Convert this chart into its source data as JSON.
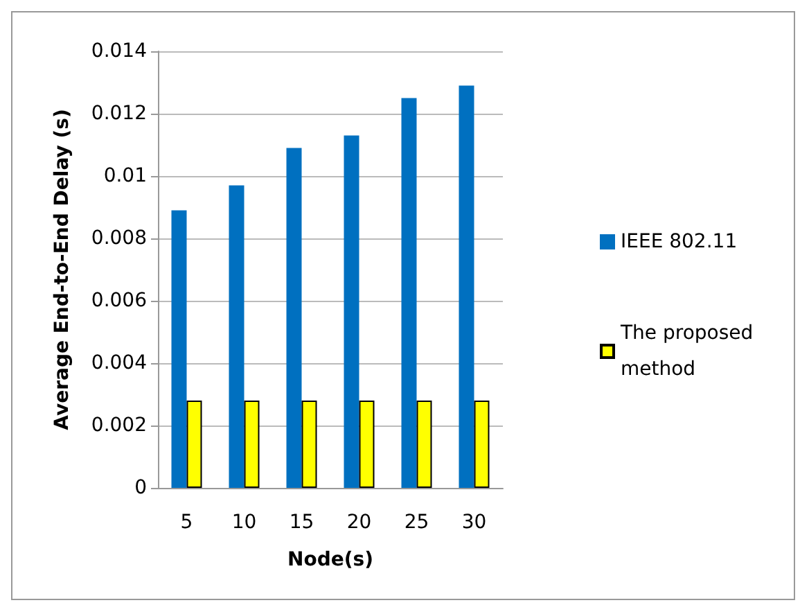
{
  "chart_data": {
    "type": "bar",
    "xlabel": "Node(s)",
    "ylabel": "Average End-to-End Delay (s)",
    "categories": [
      "5",
      "10",
      "15",
      "20",
      "25",
      "30"
    ],
    "series": [
      {
        "name": "IEEE 802.11",
        "color": "#0070c0",
        "values": [
          0.0089,
          0.0097,
          0.0109,
          0.0113,
          0.0125,
          0.0129
        ]
      },
      {
        "name": "The proposed method",
        "color": "#ffff00",
        "values": [
          0.0028,
          0.0028,
          0.0028,
          0.0028,
          0.0028,
          0.0028
        ]
      }
    ],
    "ylim": [
      0,
      0.014
    ],
    "yticks": [
      0,
      0.002,
      0.004,
      0.006,
      0.008,
      0.01,
      0.012,
      0.014
    ],
    "grid": "y",
    "legend": "right"
  }
}
